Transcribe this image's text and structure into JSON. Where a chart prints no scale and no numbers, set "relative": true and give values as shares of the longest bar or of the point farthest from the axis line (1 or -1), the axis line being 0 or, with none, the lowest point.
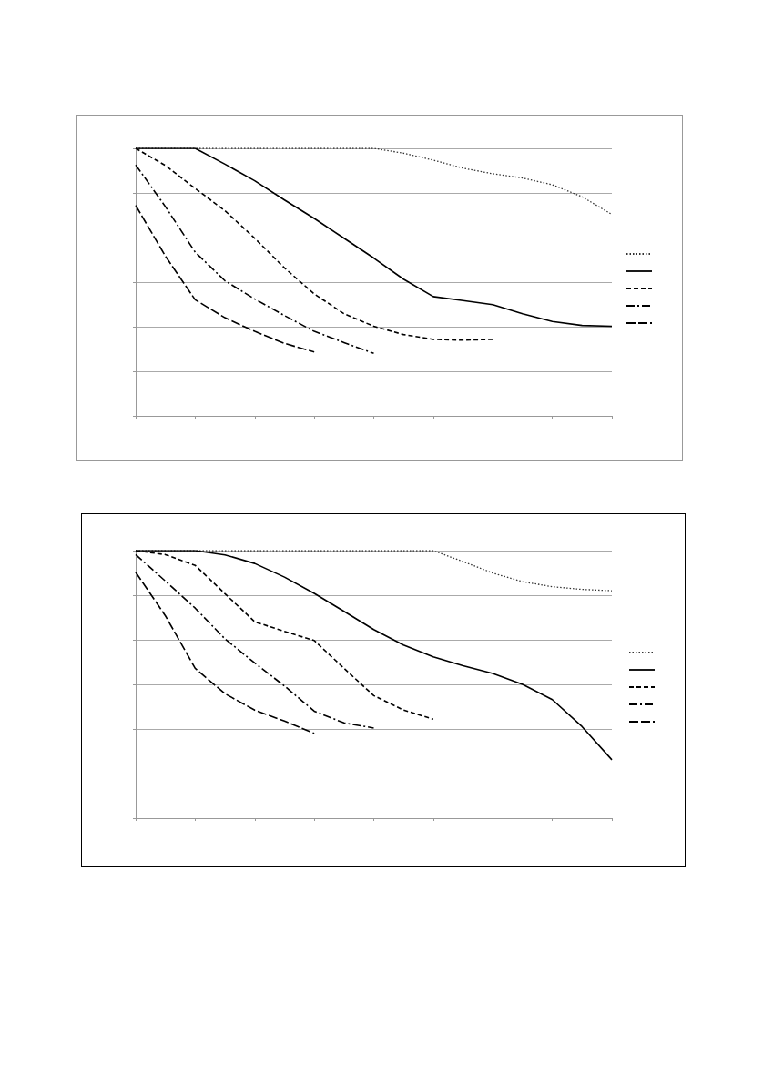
{
  "chart_data": [
    {
      "type": "line",
      "relative": true,
      "grid": "y",
      "marker": "none",
      "categories": [
        null,
        null,
        null,
        null,
        null,
        null,
        null,
        null,
        null,
        null,
        null,
        null,
        null,
        null,
        null,
        null,
        null
      ],
      "series": [
        {
          "color": "#333333",
          "line_style": "dotted",
          "values": [
            1,
            1,
            1,
            1,
            1,
            1,
            1,
            1,
            1,
            0.982,
            0.956,
            0.926,
            0.905,
            0.889,
            0.864,
            0.819,
            0.753
          ]
        },
        {
          "color": "#000000",
          "line_style": "solid",
          "values": [
            1,
            1,
            1,
            0.941,
            0.879,
            0.807,
            0.738,
            0.664,
            0.59,
            0.511,
            0.446,
            0.431,
            0.416,
            0.382,
            0.353,
            0.338,
            0.335
          ]
        },
        {
          "color": "#000000",
          "line_style": "dashed",
          "values": [
            1,
            0.936,
            0.85,
            0.767,
            0.664,
            0.553,
            0.456,
            0.382,
            0.335,
            0.304,
            0.286,
            0.283,
            0.286,
            null,
            null,
            null,
            null
          ]
        },
        {
          "color": "#000000",
          "line_style": "dashdot",
          "values": [
            0.938,
            0.782,
            0.612,
            0.505,
            0.437,
            0.375,
            0.316,
            0.274,
            0.234,
            null,
            null,
            null,
            null,
            null,
            null,
            null,
            null
          ]
        },
        {
          "color": "#000000",
          "line_style": "longdash",
          "values": [
            0.787,
            0.597,
            0.434,
            0.367,
            0.316,
            0.271,
            0.239,
            null,
            null,
            null,
            null,
            null,
            null,
            null,
            null,
            null,
            null
          ]
        }
      ]
    },
    {
      "type": "line",
      "relative": true,
      "grid": "y",
      "marker": "none",
      "categories": [
        null,
        null,
        null,
        null,
        null,
        null,
        null,
        null,
        null,
        null,
        null,
        null,
        null,
        null,
        null,
        null,
        null
      ],
      "series": [
        {
          "color": "#333333",
          "line_style": "dotted",
          "values": [
            1,
            1,
            1,
            1,
            1,
            1,
            1,
            1,
            1,
            1,
            1,
            0.959,
            0.916,
            0.884,
            0.865,
            0.855,
            0.85
          ]
        },
        {
          "color": "#000000",
          "line_style": "solid",
          "values": [
            1,
            1,
            1,
            0.984,
            0.952,
            0.901,
            0.84,
            0.773,
            0.705,
            0.647,
            0.603,
            0.57,
            0.541,
            0.5,
            0.443,
            0.342,
            0.218
          ]
        },
        {
          "color": "#000000",
          "line_style": "dashed",
          "values": [
            1,
            0.985,
            0.945,
            0.839,
            0.734,
            0.698,
            0.664,
            0.56,
            0.458,
            0.404,
            0.37,
            null,
            null,
            null,
            null,
            null,
            null
          ]
        },
        {
          "color": "#000000",
          "line_style": "dashdot",
          "values": [
            0.985,
            0.886,
            0.785,
            0.67,
            0.58,
            0.494,
            0.4,
            0.356,
            0.337,
            null,
            null,
            null,
            null,
            null,
            null,
            null,
            null
          ]
        },
        {
          "color": "#000000",
          "line_style": "longdash",
          "values": [
            0.919,
            0.756,
            0.56,
            0.465,
            0.404,
            0.363,
            0.317,
            null,
            null,
            null,
            null,
            null,
            null,
            null,
            null,
            null,
            null
          ]
        }
      ]
    }
  ]
}
